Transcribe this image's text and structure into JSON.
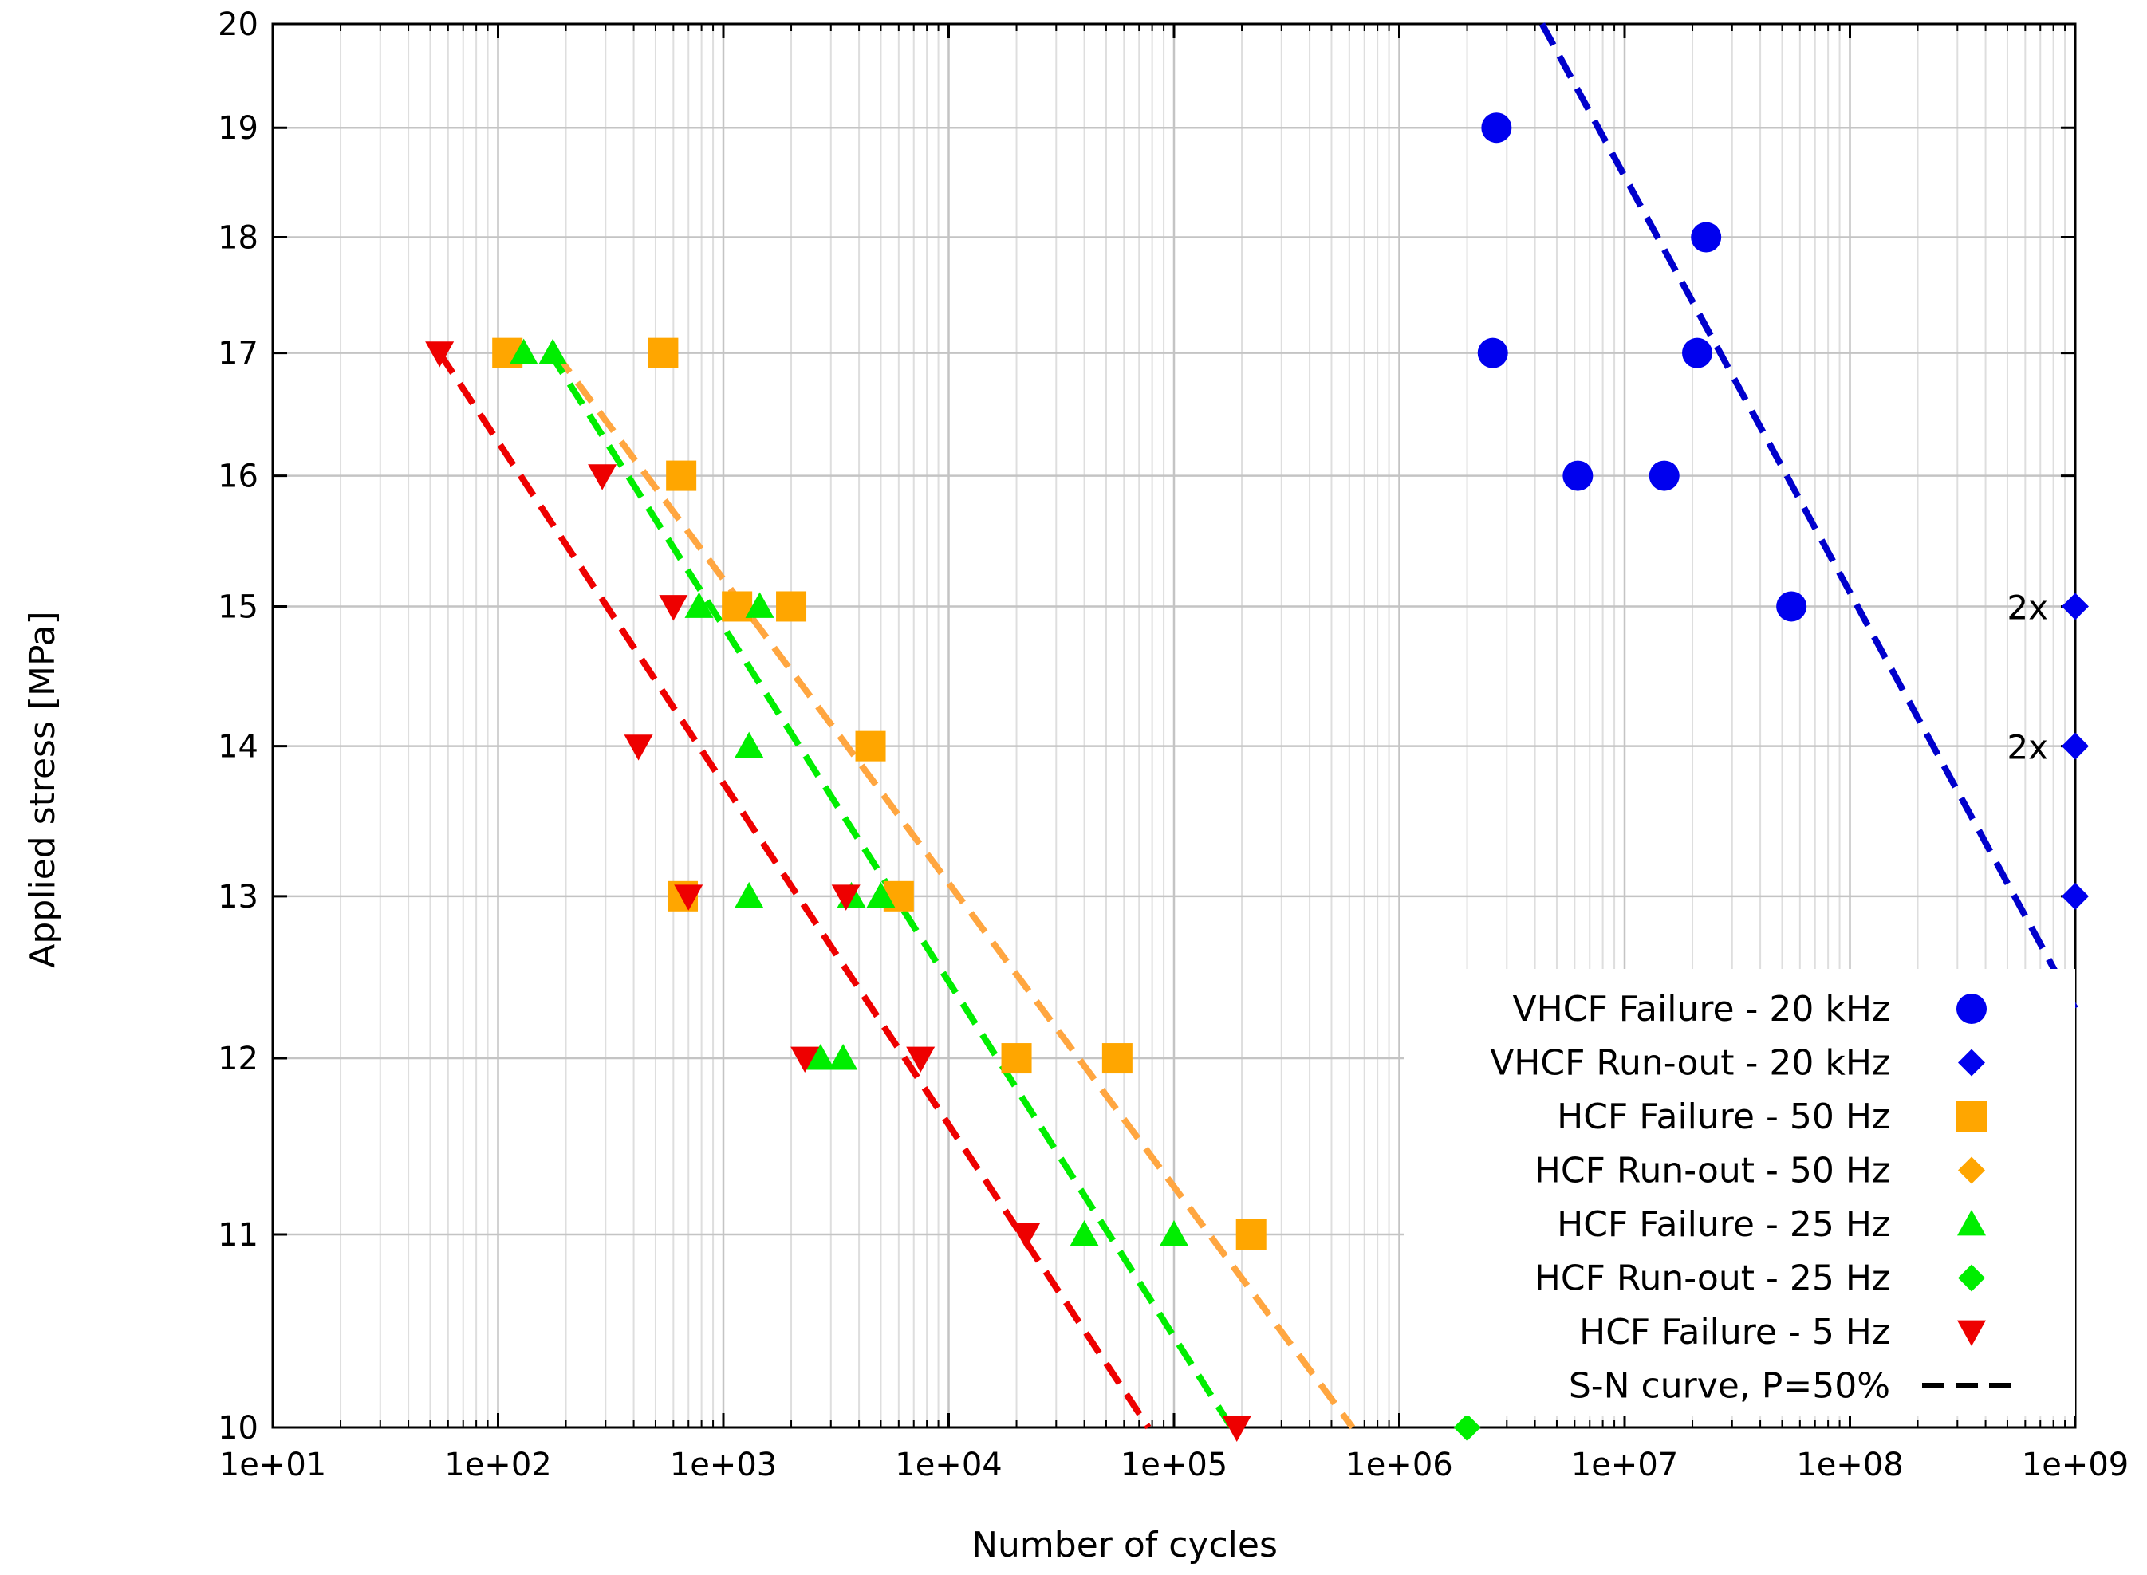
{
  "chart_data": {
    "type": "scatter",
    "title": "",
    "xlabel": "Number of cycles",
    "ylabel": "Applied stress [MPa]",
    "xscale": "log",
    "yscale": "log",
    "xlim": [
      10,
      1000000000
    ],
    "ylim": [
      10,
      20
    ],
    "xticks": [
      {
        "value": 10,
        "label": "1e+01"
      },
      {
        "value": 100,
        "label": "1e+02"
      },
      {
        "value": 1000,
        "label": "1e+03"
      },
      {
        "value": 10000,
        "label": "1e+04"
      },
      {
        "value": 100000,
        "label": "1e+05"
      },
      {
        "value": 1000000,
        "label": "1e+06"
      },
      {
        "value": 10000000,
        "label": "1e+07"
      },
      {
        "value": 100000000,
        "label": "1e+08"
      },
      {
        "value": 1000000000,
        "label": "1e+09"
      }
    ],
    "yticks": [
      {
        "value": 10,
        "label": "10"
      },
      {
        "value": 11,
        "label": "11"
      },
      {
        "value": 12,
        "label": "12"
      },
      {
        "value": 13,
        "label": "13"
      },
      {
        "value": 14,
        "label": "14"
      },
      {
        "value": 15,
        "label": "15"
      },
      {
        "value": 16,
        "label": "16"
      },
      {
        "value": 17,
        "label": "17"
      },
      {
        "value": 18,
        "label": "18"
      },
      {
        "value": 19,
        "label": "19"
      },
      {
        "value": 20,
        "label": "20"
      }
    ],
    "grid": true,
    "legend_position": "bottom-right",
    "series": [
      {
        "name": "VHCF Failure - 20 kHz",
        "marker": "circle",
        "color": "#0000ee",
        "points": [
          [
            2700000,
            19
          ],
          [
            23000000,
            18
          ],
          [
            2600000,
            17
          ],
          [
            21000000,
            17
          ],
          [
            6200000,
            16
          ],
          [
            15000000,
            16
          ],
          [
            55000000,
            15
          ]
        ]
      },
      {
        "name": "VHCF Run-out - 20 kHz",
        "marker": "diamond",
        "color": "#0000ee",
        "points": [
          [
            1000000000,
            15
          ],
          [
            1000000000,
            14
          ],
          [
            1000000000,
            13
          ]
        ]
      },
      {
        "name": "HCF Failure - 50 Hz",
        "marker": "square",
        "color": "#ffa600",
        "points": [
          [
            110,
            17
          ],
          [
            540,
            17
          ],
          [
            650,
            16
          ],
          [
            1150,
            15
          ],
          [
            2000,
            15
          ],
          [
            4500,
            14
          ],
          [
            660,
            13
          ],
          [
            6000,
            13
          ],
          [
            20000,
            12
          ],
          [
            56000,
            12
          ],
          [
            220000,
            11
          ]
        ]
      },
      {
        "name": "HCF Run-out - 50 Hz",
        "marker": "diamond",
        "color": "#ffa600",
        "points": []
      },
      {
        "name": "HCF Failure - 25 Hz",
        "marker": "triangle-up",
        "color": "#00ee00",
        "points": [
          [
            130,
            17
          ],
          [
            175,
            17
          ],
          [
            780,
            15
          ],
          [
            1450,
            15
          ],
          [
            1300,
            14
          ],
          [
            1300,
            13
          ],
          [
            3700,
            13
          ],
          [
            5000,
            13
          ],
          [
            2700,
            12
          ],
          [
            3400,
            12
          ],
          [
            40000,
            11
          ],
          [
            100000,
            11
          ]
        ]
      },
      {
        "name": "HCF Run-out - 25 Hz",
        "marker": "diamond",
        "color": "#00ee00",
        "points": [
          [
            2000000,
            10
          ]
        ]
      },
      {
        "name": "HCF Failure - 5 Hz",
        "marker": "triangle-down",
        "color": "#ee0000",
        "points": [
          [
            55,
            17
          ],
          [
            290,
            16
          ],
          [
            600,
            15
          ],
          [
            420,
            14
          ],
          [
            700,
            13
          ],
          [
            3500,
            13
          ],
          [
            2300,
            12
          ],
          [
            7500,
            12
          ],
          [
            22000,
            11
          ],
          [
            190000,
            10
          ]
        ]
      }
    ],
    "sn_curves": [
      {
        "name": "VHCF 20 kHz",
        "color": "#0000cc",
        "points": [
          [
            4300000,
            20
          ],
          [
            1000000000,
            12.3
          ]
        ]
      },
      {
        "name": "HCF 50 Hz",
        "color": "#ffa640",
        "points": [
          [
            180,
            17
          ],
          [
            620000,
            10
          ]
        ]
      },
      {
        "name": "HCF 25 Hz",
        "color": "#00ee00",
        "points": [
          [
            170,
            17
          ],
          [
            180000,
            10
          ]
        ]
      },
      {
        "name": "HCF 5 Hz",
        "color": "#ee0000",
        "points": [
          [
            55,
            17
          ],
          [
            77000,
            10
          ]
        ]
      }
    ],
    "legend_line_label": "S-N curve, P=50%",
    "annotations": [
      {
        "text": "2x",
        "x": 1000000000,
        "y": 15
      },
      {
        "text": "2x",
        "x": 1000000000,
        "y": 14
      }
    ]
  }
}
